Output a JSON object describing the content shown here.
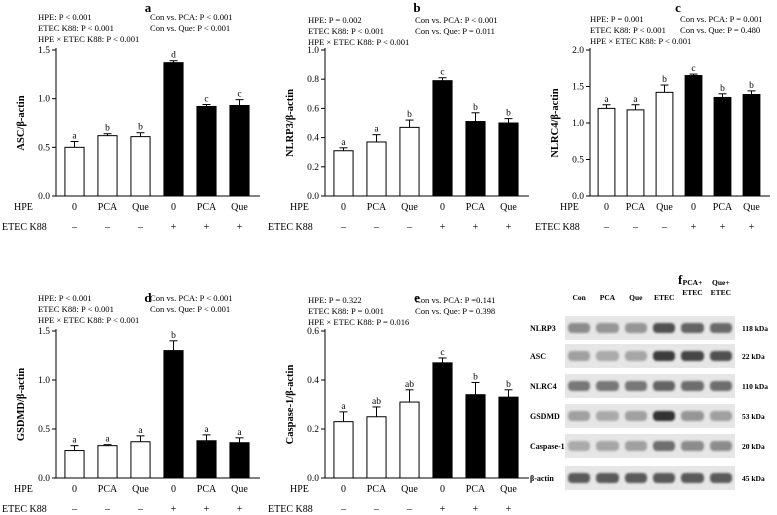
{
  "chart_data": [
    {
      "panel": "a",
      "type": "bar",
      "ylabel": "ASC/β-actin",
      "ylim": [
        0,
        1.5
      ],
      "yticks": [
        "0.0",
        "0.5",
        "1.0",
        "1.5"
      ],
      "categories": [
        "0",
        "PCA",
        "Que",
        "0",
        "PCA",
        "Que"
      ],
      "hpe_row_label": "HPE",
      "etec_row_label": "ETEC K88",
      "etec": [
        "–",
        "–",
        "–",
        "+",
        "+",
        "+"
      ],
      "values": [
        0.5,
        0.62,
        0.61,
        1.37,
        0.92,
        0.93
      ],
      "errors": [
        0.06,
        0.02,
        0.04,
        0.02,
        0.02,
        0.06
      ],
      "letters": [
        "a",
        "b",
        "b",
        "d",
        "c",
        "c"
      ],
      "fill": [
        "white",
        "white",
        "white",
        "black",
        "black",
        "black"
      ],
      "stats": [
        "HPE: P < 0.001",
        "Con vs. PCA: P < 0.001",
        "ETEC K88: P < 0.001",
        "Con vs. Que: P < 0.001",
        "HPE × ETEC K88: P < 0.001"
      ]
    },
    {
      "panel": "b",
      "type": "bar",
      "ylabel": "NLRP3/β-actin",
      "ylim": [
        0,
        1.0
      ],
      "yticks": [
        "0.0",
        "0.2",
        "0.4",
        "0.6",
        "0.8",
        "1.0"
      ],
      "categories": [
        "0",
        "PCA",
        "Que",
        "0",
        "PCA",
        "Que"
      ],
      "hpe_row_label": "HPE",
      "etec_row_label": "ETEC K88",
      "etec": [
        "–",
        "–",
        "–",
        "+",
        "+",
        "+"
      ],
      "values": [
        0.31,
        0.37,
        0.47,
        0.79,
        0.51,
        0.5
      ],
      "errors": [
        0.02,
        0.05,
        0.05,
        0.02,
        0.06,
        0.03
      ],
      "letters": [
        "a",
        "a",
        "b",
        "c",
        "b",
        "b"
      ],
      "fill": [
        "white",
        "white",
        "white",
        "black",
        "black",
        "black"
      ],
      "stats": [
        "HPE: P = 0.002",
        "Con vs. PCA: P < 0.001",
        "ETEC K88: P < 0.001",
        "Con vs. Que: P = 0.011",
        "HPE × ETEC K88: P < 0.001"
      ]
    },
    {
      "panel": "c",
      "type": "bar",
      "ylabel": "NLRC4/β-actin",
      "ylim": [
        0,
        2.0
      ],
      "yticks": [
        "0.0",
        "0.5",
        "1.0",
        "1.5",
        "2.0"
      ],
      "categories": [
        "0",
        "PCA",
        "Que",
        "0",
        "PCA",
        "Que"
      ],
      "hpe_row_label": "HPE",
      "etec_row_label": "ETEC K88",
      "etec": [
        "–",
        "–",
        "–",
        "+",
        "+",
        "+"
      ],
      "values": [
        1.2,
        1.18,
        1.42,
        1.65,
        1.35,
        1.39
      ],
      "errors": [
        0.05,
        0.07,
        0.1,
        0.02,
        0.05,
        0.05
      ],
      "letters": [
        "a",
        "a",
        "b",
        "c",
        "b",
        "b"
      ],
      "fill": [
        "white",
        "white",
        "white",
        "black",
        "black",
        "black"
      ],
      "stats": [
        "HPE: P = 0.001",
        "Con vs. PCA: P = 0.001",
        "ETEC K88: P < 0.001",
        "Con vs. Que: P = 0.480",
        "HPE × ETEC K88: P < 0.001"
      ]
    },
    {
      "panel": "d",
      "type": "bar",
      "ylabel": "GSDMD/β-actin",
      "ylim": [
        0,
        1.5
      ],
      "yticks": [
        "0.0",
        "0.5",
        "1.0",
        "1.5"
      ],
      "categories": [
        "0",
        "PCA",
        "Que",
        "0",
        "PCA",
        "Que"
      ],
      "hpe_row_label": "HPE",
      "etec_row_label": "ETEC K88",
      "etec": [
        "–",
        "–",
        "–",
        "+",
        "+",
        "+"
      ],
      "values": [
        0.28,
        0.33,
        0.37,
        1.3,
        0.38,
        0.36
      ],
      "errors": [
        0.05,
        0.01,
        0.06,
        0.1,
        0.06,
        0.05
      ],
      "letters": [
        "a",
        "a",
        "a",
        "b",
        "a",
        "a"
      ],
      "fill": [
        "white",
        "white",
        "white",
        "black",
        "black",
        "black"
      ],
      "stats": [
        "HPE: P < 0.001",
        "Con vs. PCA: P < 0.001",
        "ETEC K88: P < 0.001",
        "Con vs. Que: P < 0.001",
        "HPE × ETEC K88: P < 0.001"
      ]
    },
    {
      "panel": "e",
      "type": "bar",
      "ylabel": "Caspase-1/β-actin",
      "ylim": [
        0,
        0.6
      ],
      "yticks": [
        "0.0",
        "0.2",
        "0.4",
        "0.6"
      ],
      "categories": [
        "0",
        "PCA",
        "Que",
        "0",
        "PCA",
        "Que"
      ],
      "hpe_row_label": "HPE",
      "etec_row_label": "ETEC K88",
      "etec": [
        "–",
        "–",
        "–",
        "+",
        "+",
        "+"
      ],
      "values": [
        0.23,
        0.25,
        0.31,
        0.47,
        0.34,
        0.33
      ],
      "errors": [
        0.04,
        0.04,
        0.05,
        0.02,
        0.05,
        0.03
      ],
      "letters": [
        "a",
        "ab",
        "ab",
        "c",
        "b",
        "b"
      ],
      "fill": [
        "white",
        "white",
        "white",
        "black",
        "black",
        "black"
      ],
      "stats": [
        "HPE: P = 0.322",
        "Con vs. PCA: P =0.141",
        "ETEC K88: P = 0.001",
        "Con vs. Que: P = 0.398",
        "HPE × ETEC K88: P = 0.016"
      ]
    }
  ],
  "western_blot": {
    "panel": "f",
    "columns": [
      "Con",
      "PCA",
      "Que",
      "ETEC",
      "PCA+\nETEC",
      "Que+\nETEC"
    ],
    "rows": [
      {
        "protein": "NLRP3",
        "kda": "118 kDa",
        "intensity": [
          0.45,
          0.4,
          0.4,
          0.75,
          0.65,
          0.62
        ]
      },
      {
        "protein": "ASC",
        "kda": "22 kDa",
        "intensity": [
          0.35,
          0.3,
          0.32,
          0.85,
          0.8,
          0.75
        ]
      },
      {
        "protein": "NLRC4",
        "kda": "110 kDa",
        "intensity": [
          0.55,
          0.55,
          0.55,
          0.65,
          0.6,
          0.6
        ]
      },
      {
        "protein": "GSDMD",
        "kda": "53 kDa",
        "intensity": [
          0.35,
          0.3,
          0.35,
          0.9,
          0.4,
          0.35
        ]
      },
      {
        "protein": "Caspase-1",
        "kda": "20 kDa",
        "intensity": [
          0.3,
          0.32,
          0.35,
          0.6,
          0.45,
          0.45
        ]
      },
      {
        "protein": "β-actin",
        "kda": "45 kDa",
        "intensity": [
          0.7,
          0.7,
          0.7,
          0.7,
          0.7,
          0.7
        ]
      }
    ]
  }
}
